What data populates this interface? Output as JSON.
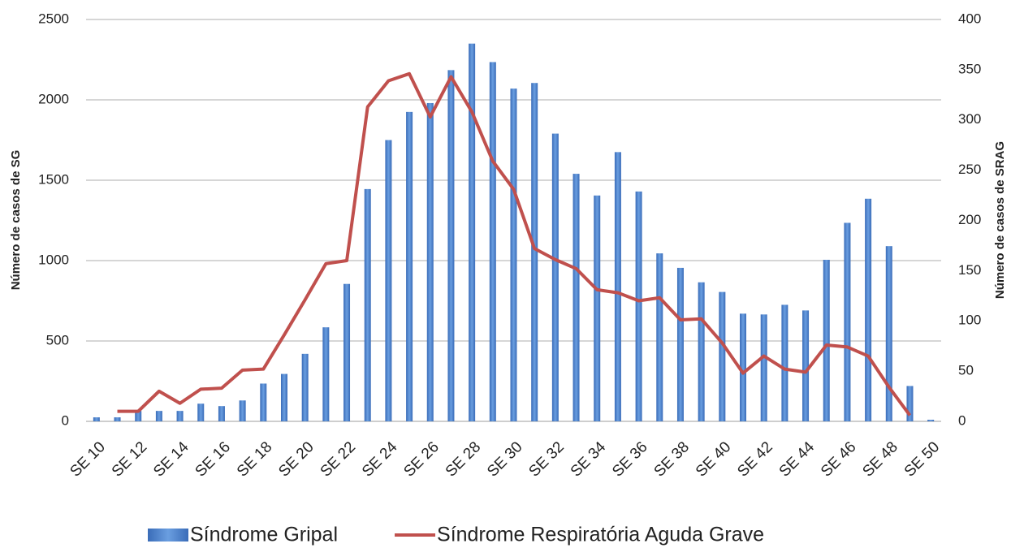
{
  "chart_data": {
    "type": "bar-line",
    "y_label": "Número de casos de SG",
    "y2_label": "Número de casos de SRAG",
    "categories": [
      "SE 10",
      null,
      "SE 12",
      null,
      "SE 14",
      null,
      "SE 16",
      null,
      "SE 18",
      null,
      "SE 20",
      null,
      "SE 22",
      null,
      "SE 24",
      null,
      "SE 26",
      null,
      "SE 28",
      null,
      "SE 30",
      null,
      "SE 32",
      null,
      "SE 34",
      null,
      "SE 36",
      null,
      "SE 38",
      null,
      "SE 40",
      null,
      "SE 42",
      null,
      "SE 44",
      null,
      "SE 46",
      null,
      "SE 48",
      null,
      "SE 50"
    ],
    "series": [
      {
        "name": "Síndrome Gripal",
        "color": "#4a7ec8",
        "kind": "bar",
        "values": [
          25,
          25,
          65,
          65,
          65,
          110,
          95,
          130,
          235,
          295,
          420,
          585,
          855,
          1445,
          1750,
          1925,
          1980,
          2185,
          2350,
          2235,
          2070,
          2105,
          1790,
          1540,
          1405,
          1675,
          1430,
          1045,
          955,
          865,
          805,
          670,
          665,
          725,
          690,
          1005,
          1235,
          1385,
          1090,
          220,
          10
        ]
      },
      {
        "name": "Síndrome Respiratória Aguda Grave",
        "color": "#c0504d",
        "kind": "line",
        "axis": "y2",
        "values": [
          null,
          10,
          10,
          30,
          18,
          32,
          33,
          51,
          52,
          86,
          121,
          157,
          160,
          313,
          339,
          346,
          303,
          343,
          308,
          259,
          231,
          172,
          161,
          152,
          131,
          128,
          120,
          123,
          101,
          102,
          78,
          48,
          65,
          52,
          49,
          76,
          74,
          65,
          34,
          6,
          null
        ]
      }
    ],
    "ylim": [
      0,
      2500
    ],
    "yticks": [
      0,
      500,
      1000,
      1500,
      2000,
      2500
    ],
    "y2lim": [
      0,
      400
    ],
    "y2ticks": [
      0,
      50,
      100,
      150,
      200,
      250,
      300,
      350,
      400
    ],
    "grid": true,
    "legend": "bottom"
  }
}
